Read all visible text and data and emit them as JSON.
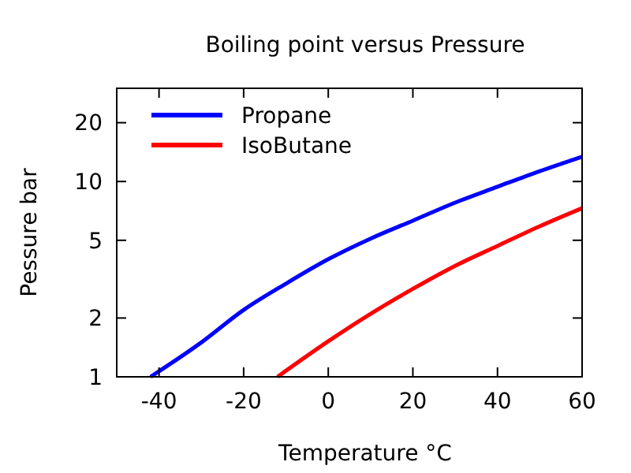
{
  "chart_data": {
    "type": "line",
    "title": "Boiling point versus Pressure",
    "xlabel": "Temperature °C",
    "ylabel": "Pessure bar",
    "log": "y",
    "xlim": [
      -50,
      60
    ],
    "xticks": [
      -40,
      -20,
      0,
      20,
      40,
      60
    ],
    "ylim": [
      1,
      30
    ],
    "yticks": [
      1,
      2,
      5,
      10,
      20
    ],
    "legend": "top left",
    "grid": false,
    "line_style": "solid",
    "marker": "none",
    "series": [
      {
        "name": "Propane",
        "color": "#0000ff",
        "x": [
          -42,
          -30,
          -20,
          -10,
          0,
          10,
          20,
          30,
          40,
          50,
          60
        ],
        "values": [
          1,
          1.5,
          2.2,
          3.0,
          4.0,
          5.1,
          6.3,
          7.8,
          9.4,
          11.3,
          13.4
        ]
      },
      {
        "name": "IsoButane",
        "color": "#ff0000",
        "x": [
          -12,
          0,
          10,
          20,
          30,
          40,
          50,
          60
        ],
        "values": [
          1,
          1.52,
          2.1,
          2.82,
          3.7,
          4.68,
          5.9,
          7.3
        ]
      }
    ]
  }
}
